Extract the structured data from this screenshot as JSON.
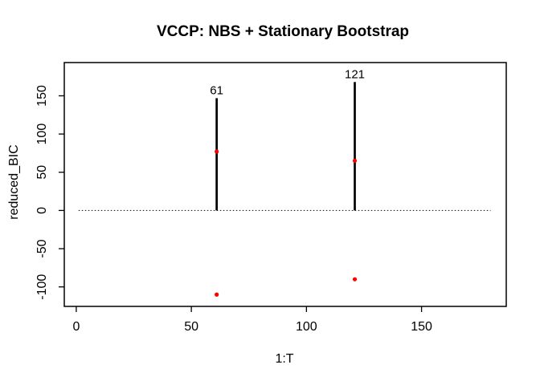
{
  "chart_data": {
    "type": "scatter",
    "title": "VCCP: NBS + Stationary Bootstrap",
    "xlabel": "1:T",
    "ylabel": "reduced_BIC",
    "xlim": [
      -5.2,
      186.8
    ],
    "ylim": [
      -125.5,
      193.5
    ],
    "xticks": [
      0,
      50,
      100,
      150
    ],
    "yticks": [
      -100,
      -50,
      0,
      50,
      100,
      150
    ],
    "grid": false,
    "legend": null,
    "zero_line": {
      "y": 0,
      "x_start": 1,
      "x_end": 180,
      "style": "dotted"
    },
    "changepoints": [
      {
        "x": 61,
        "label": "61",
        "stem_bottom": 0,
        "stem_top": 147,
        "point_y": 77,
        "outlier_y": -110
      },
      {
        "x": 121,
        "label": "121",
        "stem_bottom": 0,
        "stem_top": 168,
        "point_y": 65,
        "outlier_y": -90
      }
    ],
    "colors": {
      "stem": "#000000",
      "point": "#FF0000",
      "axis": "#000000",
      "background": "#FFFFFF"
    }
  }
}
